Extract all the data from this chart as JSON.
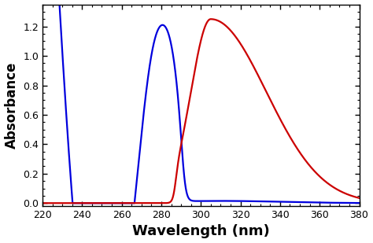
{
  "title": "",
  "xlabel": "Wavelength (nm)",
  "ylabel": "Absorbance",
  "xlim": [
    220,
    380
  ],
  "ylim": [
    -0.02,
    1.35
  ],
  "xticks": [
    220,
    240,
    260,
    280,
    300,
    320,
    340,
    360,
    380
  ],
  "yticks": [
    0.0,
    0.2,
    0.4,
    0.6,
    0.8,
    1.0,
    1.2
  ],
  "blue_color": "#0000dd",
  "red_color": "#cc0000",
  "background_color": "#ffffff",
  "xlabel_fontsize": 13,
  "ylabel_fontsize": 12,
  "tick_fontsize": 9,
  "linewidth": 1.6
}
